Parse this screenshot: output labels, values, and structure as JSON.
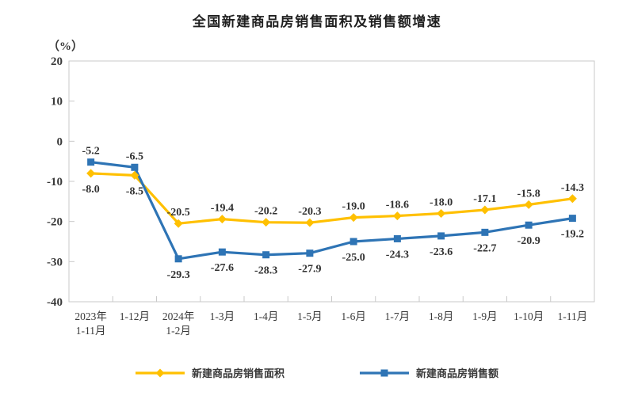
{
  "title": "全国新建商品房销售面积及销售额增速",
  "chart_data": {
    "type": "line",
    "title": "全国新建商品房销售面积及销售额增速",
    "xlabel": "",
    "ylabel": "（%）",
    "ylim": [
      -40,
      20
    ],
    "y_ticks": [
      20,
      10,
      0,
      -10,
      -20,
      -30,
      -40
    ],
    "grid": false,
    "legend_position": "bottom",
    "axis_color": "#c9c9c9",
    "text_color": "#3a3a3a",
    "categories": [
      [
        "2023年",
        "1-11月"
      ],
      [
        "1-12月"
      ],
      [
        "2024年",
        "1-2月"
      ],
      [
        "1-3月"
      ],
      [
        "1-4月"
      ],
      [
        "1-5月"
      ],
      [
        "1-6月"
      ],
      [
        "1-7月"
      ],
      [
        "1-8月"
      ],
      [
        "1-9月"
      ],
      [
        "1-10月"
      ],
      [
        "1-11月"
      ]
    ],
    "series": [
      {
        "name": "新建商品房销售面积",
        "color": "#FFC000",
        "marker": "diamond",
        "values": [
          -8.0,
          -8.5,
          -20.5,
          -19.4,
          -20.2,
          -20.3,
          -19.0,
          -18.6,
          -18.0,
          -17.1,
          -15.8,
          -14.3
        ],
        "label_side": [
          "below",
          "below",
          "above",
          "above",
          "above",
          "above",
          "above",
          "above",
          "above",
          "above",
          "above",
          "above"
        ]
      },
      {
        "name": "新建商品房销售额",
        "color": "#2E74B5",
        "marker": "square",
        "values": [
          -5.2,
          -6.5,
          -29.3,
          -27.6,
          -28.3,
          -27.9,
          -25.0,
          -24.3,
          -23.6,
          -22.7,
          -20.9,
          -19.2
        ],
        "label_side": [
          "above",
          "above",
          "below",
          "below",
          "below",
          "below",
          "below",
          "below",
          "below",
          "below",
          "below",
          "below"
        ]
      }
    ]
  }
}
